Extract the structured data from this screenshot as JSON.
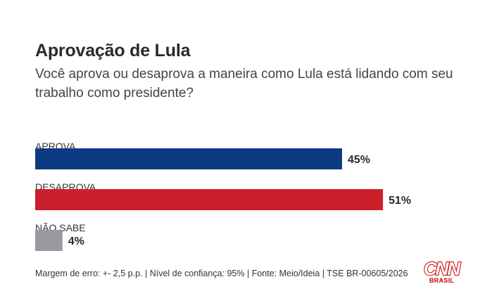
{
  "header": {
    "title": "Aprovação de Lula",
    "subtitle": "Você aprova ou desaprova a maneira como Lula está lidando com seu trabalho como presidente?"
  },
  "chart_data": {
    "type": "bar",
    "orientation": "horizontal",
    "title": "Aprovação de Lula",
    "categories": [
      "APROVA",
      "DESAPROVA",
      "NÃO SABE"
    ],
    "values": [
      45,
      51,
      4
    ],
    "labels": [
      "45%",
      "51%",
      "4%"
    ],
    "colors": [
      "#0e3a82",
      "#cc1f2c",
      "#98989f"
    ],
    "unit": "%",
    "xlim": [
      0,
      100
    ],
    "grid": false,
    "xlabel": "",
    "ylabel": ""
  },
  "footer": {
    "note": "Margem de erro: +- 2,5 p.p. | Nível de confiança: 95% | Fonte: Meio/Ideia | TSE BR-00605/2026"
  },
  "logo": {
    "main": "CNN",
    "sub": "BRASIL",
    "color": "#cc0000"
  }
}
